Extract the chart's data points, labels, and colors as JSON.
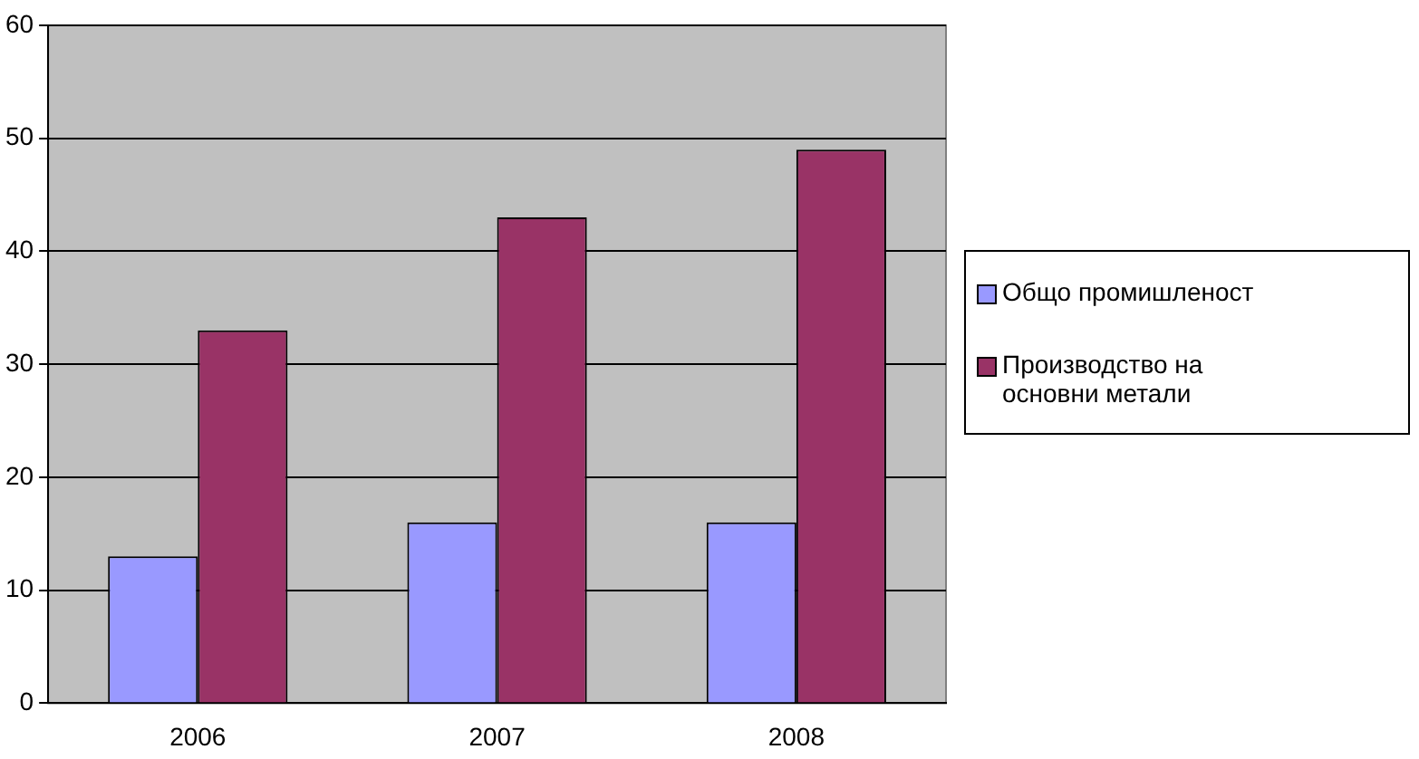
{
  "chart_data": {
    "type": "bar",
    "categories": [
      "2006",
      "2007",
      "2008"
    ],
    "series": [
      {
        "name": "Общо промишленост",
        "color": "#9999ff",
        "values": [
          13,
          16,
          16
        ]
      },
      {
        "name": "Производство на основни метали",
        "color": "#993366",
        "values": [
          33,
          43,
          49
        ]
      }
    ],
    "ylim": [
      0,
      60
    ],
    "yticks": [
      0,
      10,
      20,
      30,
      40,
      50,
      60
    ],
    "grid": "y",
    "legend": "right"
  }
}
